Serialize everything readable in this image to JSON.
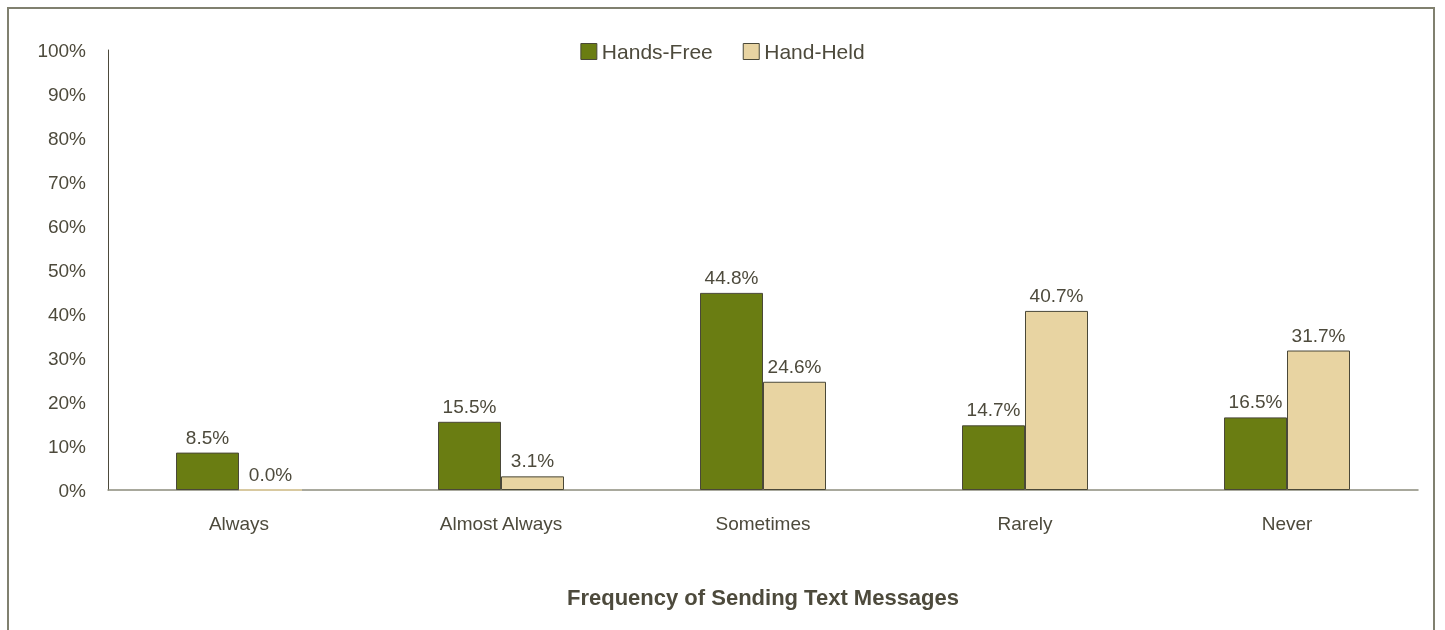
{
  "chart_data": {
    "type": "bar",
    "xlabel": "Frequency of Sending Text Messages",
    "categories": [
      "Always",
      "Almost Always",
      "Sometimes",
      "Rarely",
      "Never"
    ],
    "series": [
      {
        "name": "Hands-Free",
        "color": "#6a7d12",
        "values": [
          8.5,
          15.5,
          44.8,
          14.7,
          16.5
        ],
        "value_labels": [
          "8.5%",
          "15.5%",
          "44.8%",
          "14.7%",
          "16.5%"
        ]
      },
      {
        "name": "Hand-Held",
        "color": "#e8d4a2",
        "values": [
          0.0,
          3.1,
          24.6,
          40.7,
          31.7
        ],
        "value_labels": [
          "0.0%",
          "3.1%",
          "24.6%",
          "40.7%",
          "31.7%"
        ]
      }
    ],
    "ylim": [
      0,
      100
    ],
    "yticks": [
      {
        "value": 0,
        "label": "0%"
      },
      {
        "value": 10,
        "label": "10%"
      },
      {
        "value": 20,
        "label": "20%"
      },
      {
        "value": 30,
        "label": "30%"
      },
      {
        "value": 40,
        "label": "40%"
      },
      {
        "value": 50,
        "label": "50%"
      },
      {
        "value": 60,
        "label": "60%"
      },
      {
        "value": 70,
        "label": "70%"
      },
      {
        "value": 80,
        "label": "80%"
      },
      {
        "value": 90,
        "label": "90%"
      },
      {
        "value": 100,
        "label": "100%"
      }
    ],
    "grid": false,
    "legend": "top"
  }
}
